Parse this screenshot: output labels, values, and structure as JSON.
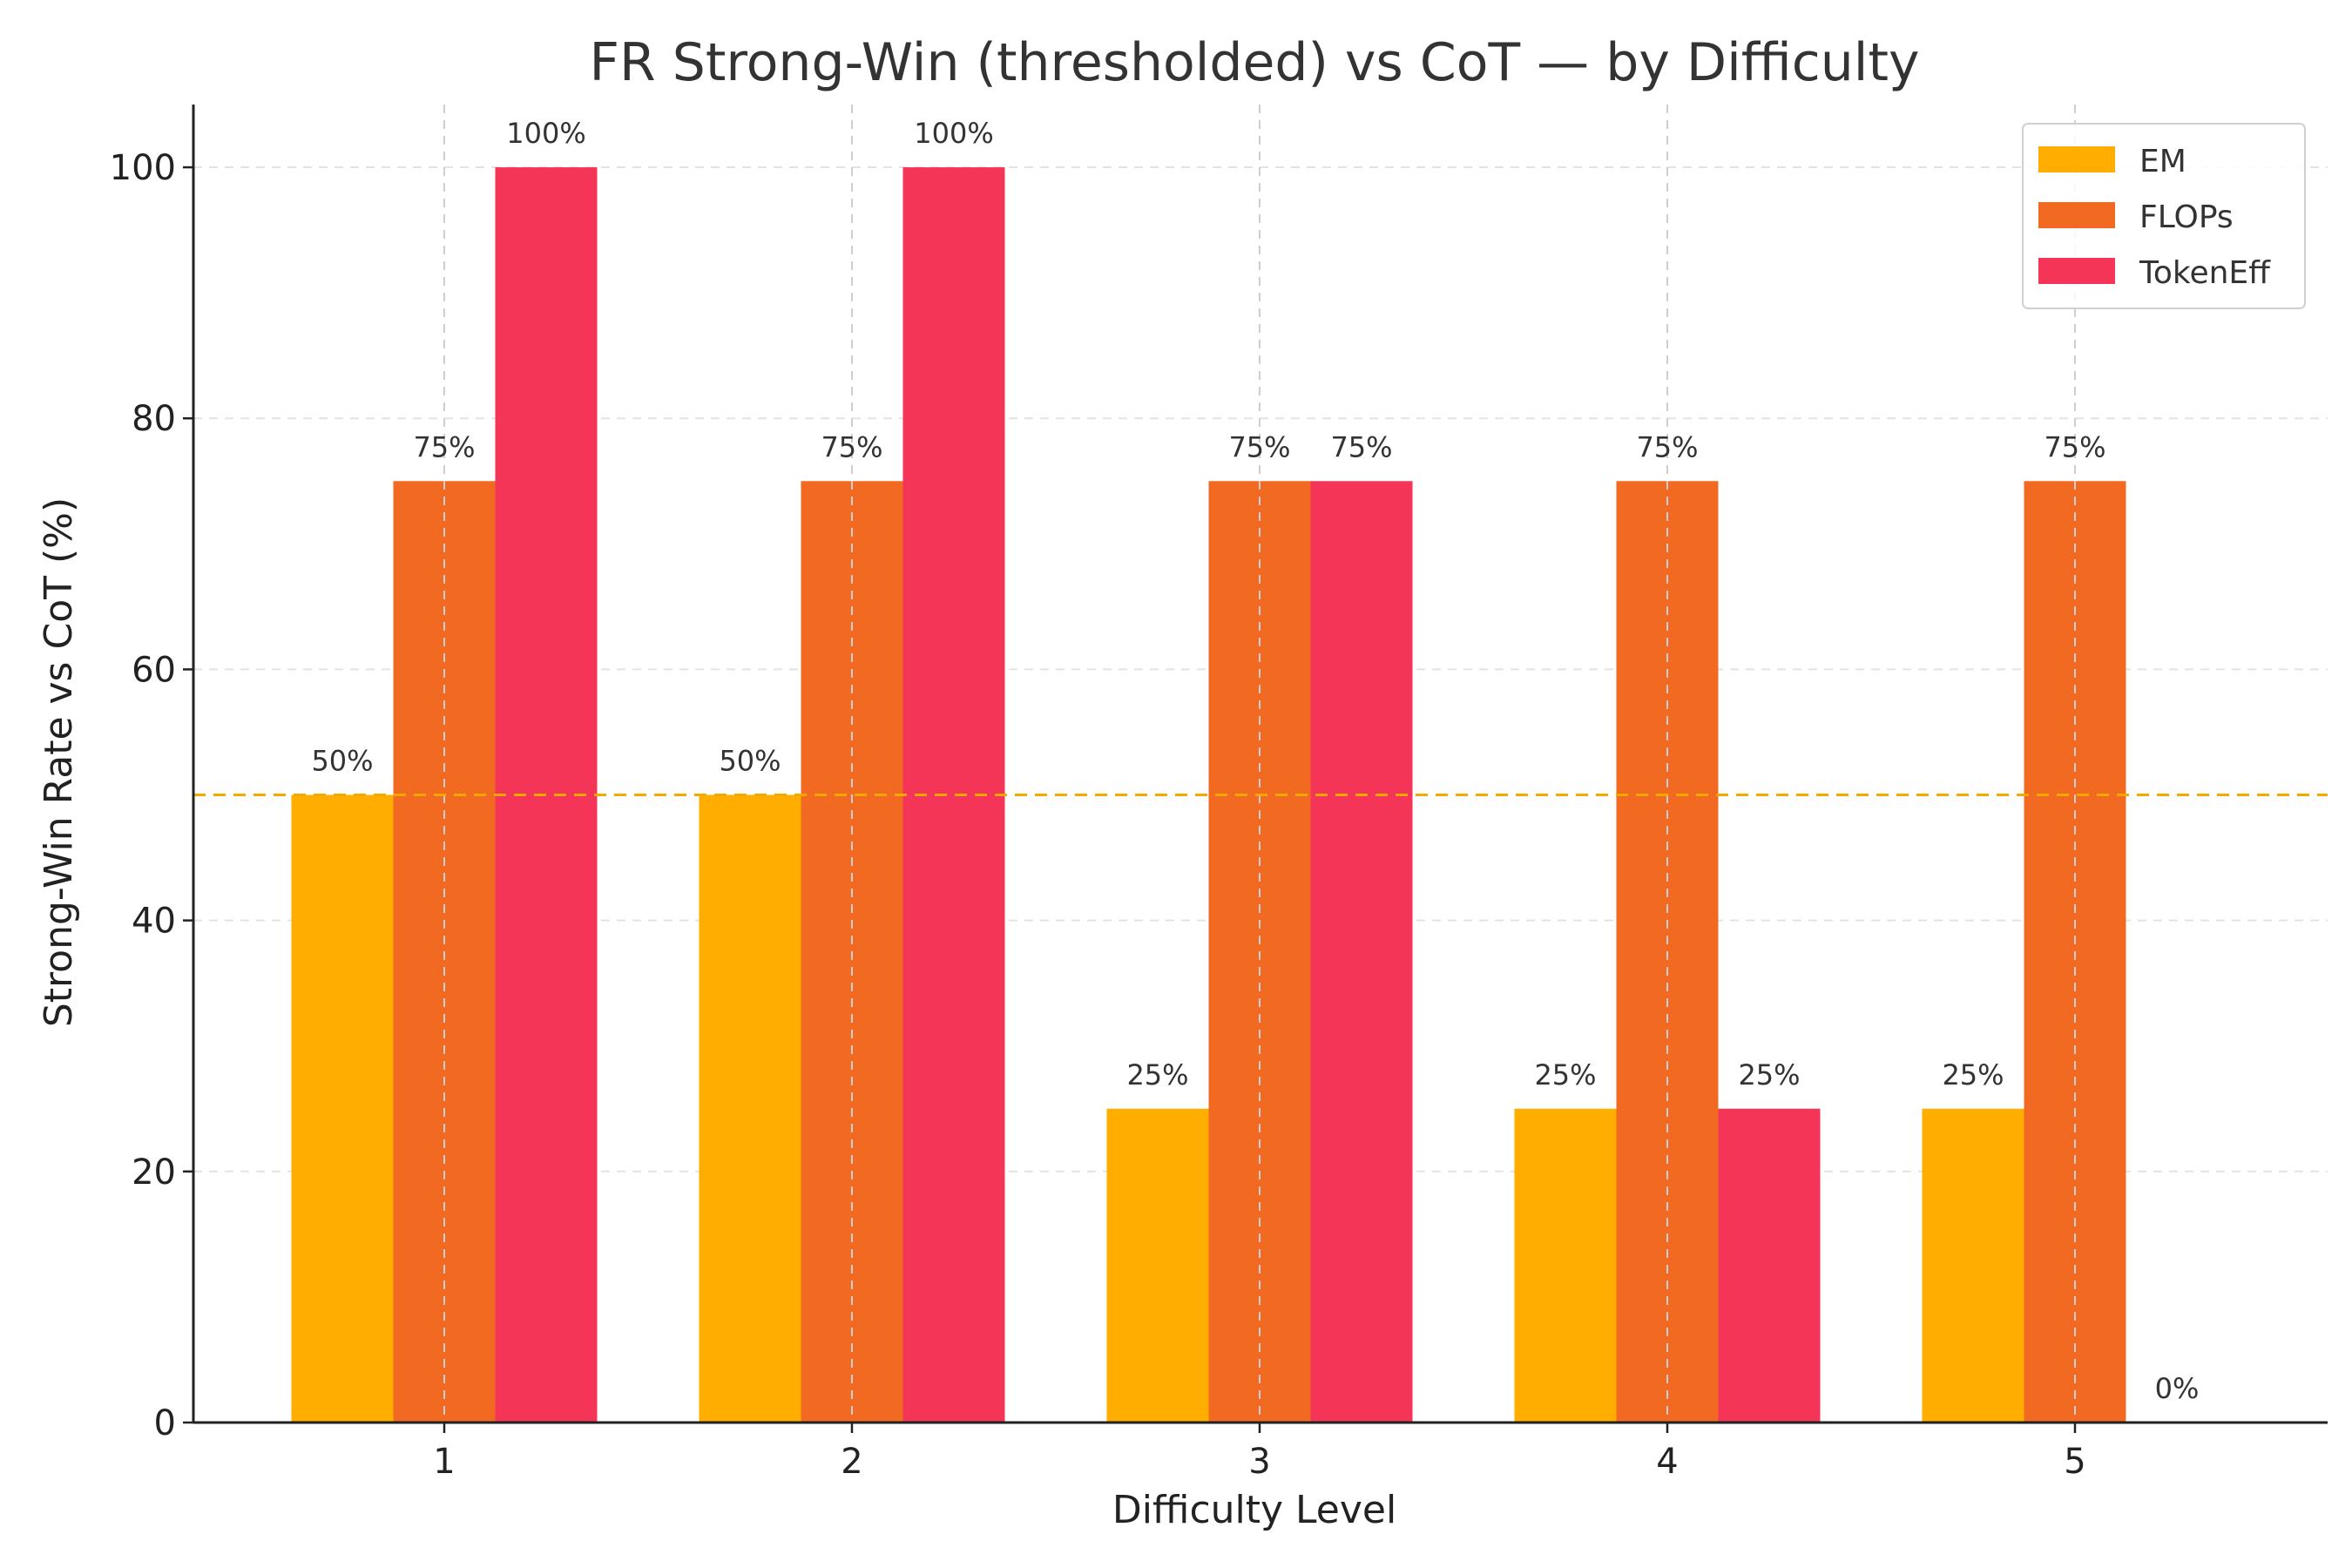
{
  "chart_data": {
    "type": "bar",
    "title": "FR Strong-Win (thresholded) vs CoT — by Difficulty",
    "xlabel": "Difficulty Level",
    "ylabel": "Strong-Win Rate vs CoT (%)",
    "categories": [
      "1",
      "2",
      "3",
      "4",
      "5"
    ],
    "ylim": [
      0,
      105
    ],
    "yticks": [
      "0",
      "20",
      "40",
      "60",
      "80",
      "100"
    ],
    "grid": true,
    "legend_position": "top-right",
    "reference_line": {
      "value": 50,
      "color": "#F5A900",
      "style": "dashed"
    },
    "series": [
      {
        "name": "EM",
        "color": "#FFAE00",
        "values": [
          50,
          50,
          25,
          25,
          25
        ],
        "labels": [
          "50%",
          "50%",
          "25%",
          "25%",
          "25%"
        ]
      },
      {
        "name": "FLOPs",
        "color": "#F26A21",
        "values": [
          75,
          75,
          75,
          75,
          75
        ],
        "labels": [
          "75%",
          "75%",
          "75%",
          "75%",
          "75%"
        ]
      },
      {
        "name": "TokenEff",
        "color": "#F43557",
        "values": [
          100,
          100,
          75,
          25,
          0
        ],
        "labels": [
          "100%",
          "100%",
          "75%",
          "25%",
          "0%"
        ]
      }
    ]
  }
}
